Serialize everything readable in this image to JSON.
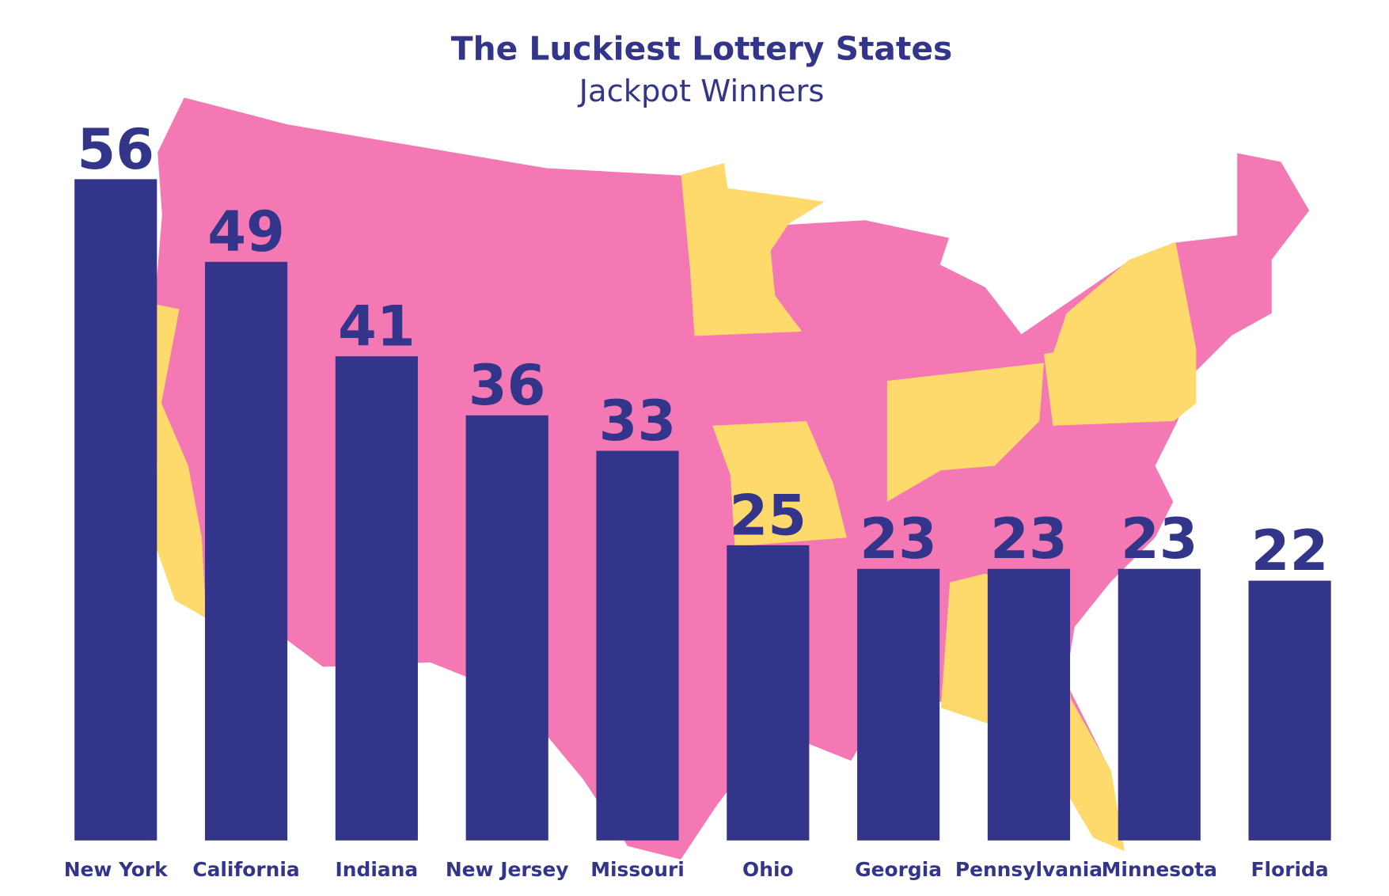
{
  "chart_data": {
    "type": "bar",
    "title": "The Luckiest Lottery States",
    "subtitle": "Jackpot Winners",
    "categories": [
      "New York",
      "California",
      "Indiana",
      "New Jersey",
      "Missouri",
      "Ohio",
      "Georgia",
      "Pennsylvania",
      "Minnesota",
      "Florida"
    ],
    "values": [
      56,
      49,
      41,
      36,
      33,
      25,
      23,
      23,
      23,
      22
    ],
    "color": "#33358a"
  }
}
